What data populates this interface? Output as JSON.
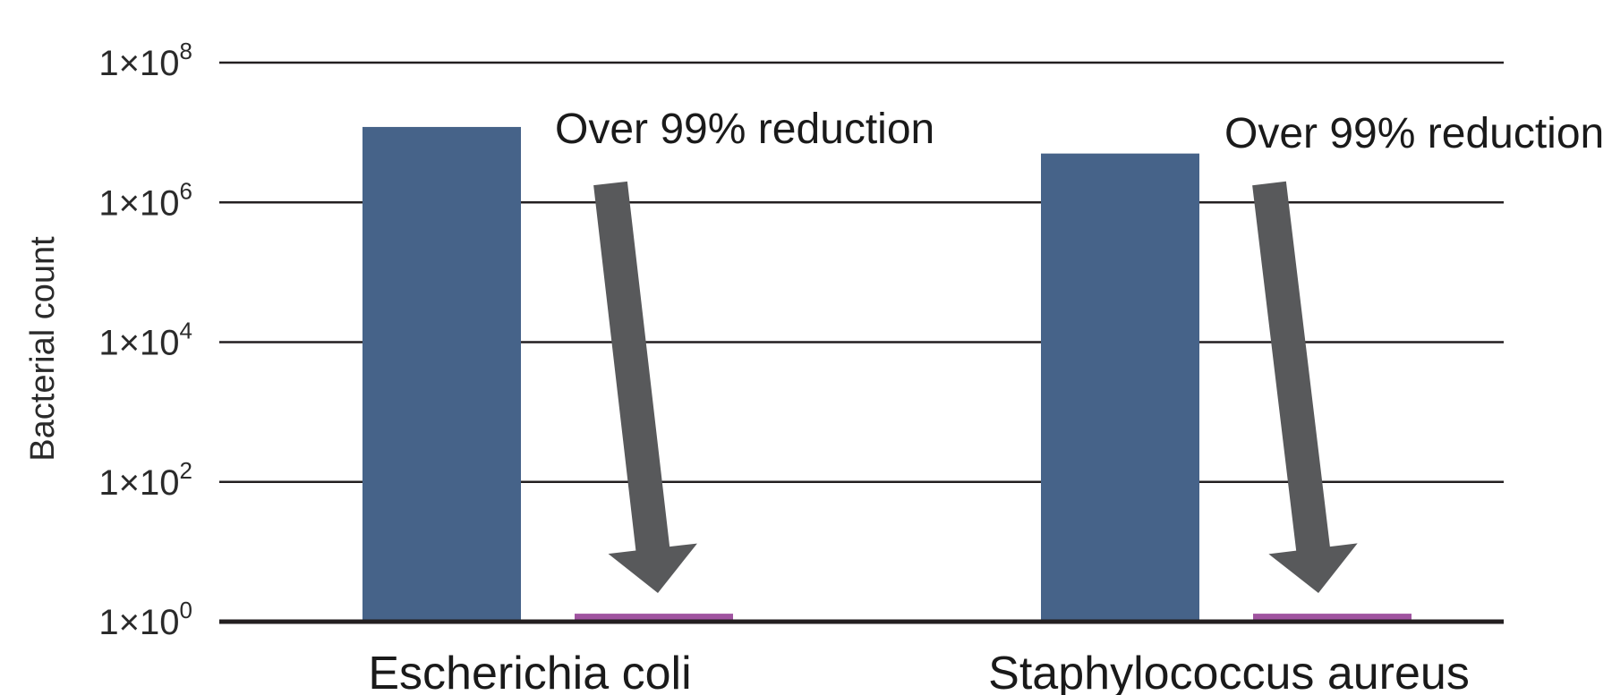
{
  "chart_data": {
    "type": "bar",
    "scale": "log10",
    "ylabel": "Bacterial count",
    "xlabel": "",
    "ylim": [
      1,
      100000000
    ],
    "yticks": [
      {
        "mantissa": "1×10",
        "exp": "0"
      },
      {
        "mantissa": "1×10",
        "exp": "2"
      },
      {
        "mantissa": "1×10",
        "exp": "4"
      },
      {
        "mantissa": "1×10",
        "exp": "6"
      },
      {
        "mantissa": "1×10",
        "exp": "8"
      }
    ],
    "grid": true,
    "categories": [
      "Escherichia coli",
      "Staphylococcus aureus"
    ],
    "series": [
      {
        "values": [
          12000000,
          5000000
        ],
        "color": "#466389"
      },
      {
        "values": [
          1.3,
          1.3
        ],
        "color": "#a054a0"
      }
    ],
    "annotations": [
      "Over 99% reduction",
      "Over 99% reduction"
    ],
    "arrow_color": "#58595b"
  }
}
